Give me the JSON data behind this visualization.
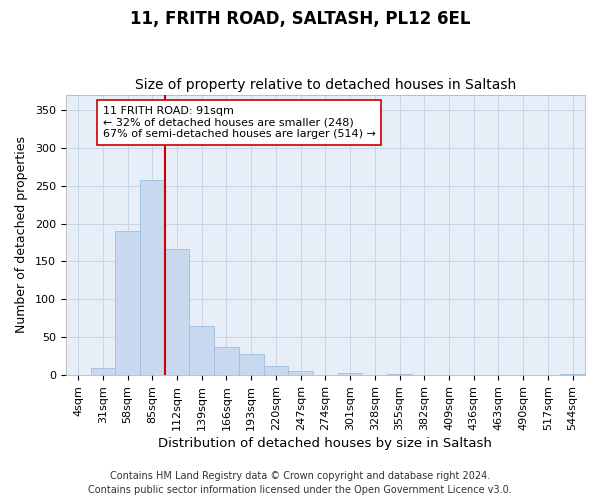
{
  "title1": "11, FRITH ROAD, SALTASH, PL12 6EL",
  "title2": "Size of property relative to detached houses in Saltash",
  "xlabel": "Distribution of detached houses by size in Saltash",
  "ylabel": "Number of detached properties",
  "bar_labels": [
    "4sqm",
    "31sqm",
    "58sqm",
    "85sqm",
    "112sqm",
    "139sqm",
    "166sqm",
    "193sqm",
    "220sqm",
    "247sqm",
    "274sqm",
    "301sqm",
    "328sqm",
    "355sqm",
    "382sqm",
    "409sqm",
    "436sqm",
    "463sqm",
    "490sqm",
    "517sqm",
    "544sqm"
  ],
  "bar_heights": [
    0,
    10,
    190,
    257,
    167,
    65,
    37,
    28,
    12,
    6,
    0,
    3,
    0,
    1,
    0,
    0,
    0,
    0,
    0,
    0,
    1
  ],
  "bar_color": "#c8d9ef",
  "bar_edge_color": "#a0bedd",
  "grid_color": "#c8d4e8",
  "plot_bg_color": "#e8eef8",
  "fig_bg_color": "#ffffff",
  "vline_x_idx": 3,
  "vline_color": "#cc0000",
  "annotation_text": "11 FRITH ROAD: 91sqm\n← 32% of detached houses are smaller (248)\n67% of semi-detached houses are larger (514) →",
  "annotation_box_color": "#ffffff",
  "annotation_box_edge": "#cc0000",
  "footer_text": "Contains HM Land Registry data © Crown copyright and database right 2024.\nContains public sector information licensed under the Open Government Licence v3.0.",
  "ylim": [
    0,
    370
  ],
  "yticks": [
    0,
    50,
    100,
    150,
    200,
    250,
    300,
    350
  ],
  "title1_fontsize": 12,
  "title2_fontsize": 10,
  "xlabel_fontsize": 9.5,
  "ylabel_fontsize": 9,
  "tick_fontsize": 8,
  "annotation_fontsize": 8,
  "footer_fontsize": 7
}
